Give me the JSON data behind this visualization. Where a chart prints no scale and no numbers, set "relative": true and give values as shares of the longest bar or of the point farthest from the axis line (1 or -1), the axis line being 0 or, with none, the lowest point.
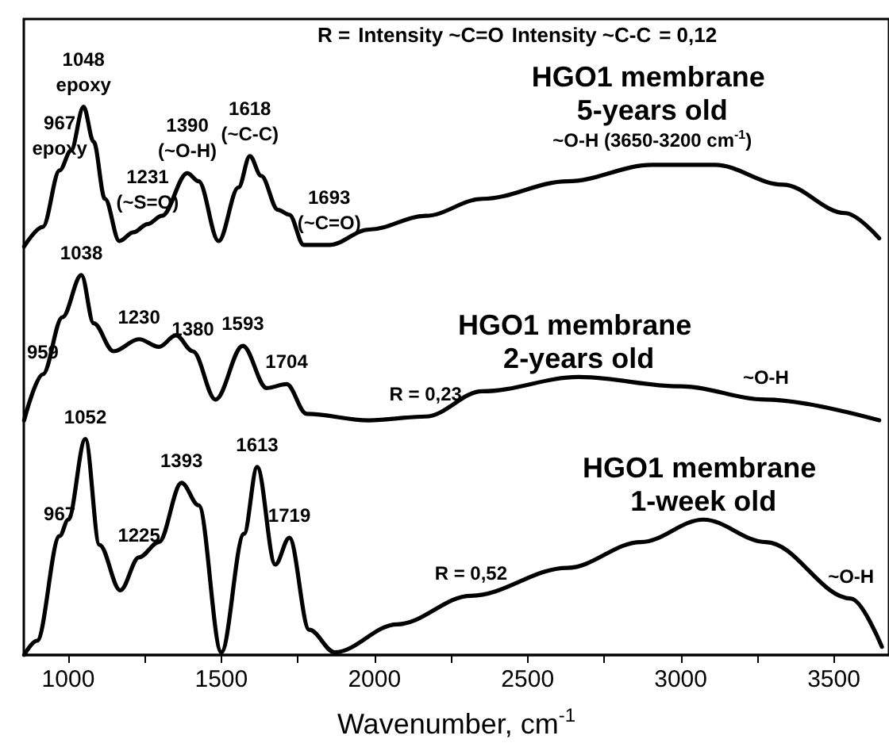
{
  "chart_data": {
    "type": "line",
    "relative": true,
    "xlabel": "Wavenumber, cm$^{-1}$",
    "xlim": [
      855,
      3680
    ],
    "xticks": [
      1000,
      1500,
      2000,
      2500,
      3000,
      3500
    ],
    "grid": false,
    "tick_labels": "x",
    "marker": "none",
    "line_style": "solid",
    "series": [
      {
        "name": "HGO1 membrane 5-years old",
        "color": "#000000",
        "x": [
          856,
          917,
          972,
          1009,
          1050,
          1083,
          1120,
          1167,
          1213,
          1259,
          1306,
          1389,
          1426,
          1491,
          1556,
          1593,
          1630,
          1685,
          1722,
          1769,
          1852,
          1982,
          2167,
          2352,
          2630,
          2907,
          3111,
          3333,
          3537,
          3648
        ],
        "values": [
          0.745,
          0.781,
          0.884,
          0.92,
          1.0,
          0.936,
          0.832,
          0.755,
          0.771,
          0.786,
          0.801,
          0.879,
          0.864,
          0.755,
          0.853,
          0.91,
          0.874,
          0.812,
          0.803,
          0.748,
          0.748,
          0.776,
          0.801,
          0.832,
          0.864,
          0.894,
          0.894,
          0.858,
          0.806,
          0.76
        ]
      },
      {
        "name": "HGO1 membrane 2-years old",
        "color": "#000000",
        "x": [
          856,
          917,
          981,
          1043,
          1083,
          1148,
          1231,
          1296,
          1352,
          1407,
          1481,
          1570,
          1648,
          1713,
          1778,
          1981,
          2167,
          2352,
          2667,
          3000,
          3278,
          3648
        ],
        "values": [
          0.428,
          0.512,
          0.616,
          0.693,
          0.605,
          0.554,
          0.576,
          0.562,
          0.583,
          0.554,
          0.466,
          0.564,
          0.487,
          0.494,
          0.44,
          0.428,
          0.435,
          0.481,
          0.507,
          0.49,
          0.466,
          0.428
        ]
      },
      {
        "name": "HGO1 membrane 1-week old",
        "color": "#000000",
        "x": [
          856,
          898,
          972,
          1000,
          1056,
          1102,
          1170,
          1231,
          1296,
          1370,
          1426,
          1500,
          1574,
          1617,
          1676,
          1722,
          1787,
          1870,
          2074,
          2315,
          2630,
          2870,
          3074,
          3278,
          3556,
          3657
        ],
        "values": [
          0.0,
          0.026,
          0.217,
          0.247,
          0.394,
          0.201,
          0.118,
          0.178,
          0.206,
          0.314,
          0.273,
          0.005,
          0.221,
          0.343,
          0.165,
          0.214,
          0.046,
          0.005,
          0.056,
          0.108,
          0.159,
          0.206,
          0.247,
          0.206,
          0.103,
          0.015
        ]
      }
    ],
    "annotations": [
      "R =",
      "Intensity ~C=O",
      "Intensity ~C-C",
      "= 0,12",
      {
        "text": "967",
        "x": 972,
        "y": 0.884
      },
      {
        "text": "epoxy",
        "x": 972,
        "y": 0.884
      },
      {
        "text": "1048",
        "x": 1050,
        "y": 1.0
      },
      {
        "text": "epoxy",
        "x": 1050,
        "y": 1.0
      },
      {
        "text": "1231",
        "x": 1259,
        "y": 0.786
      },
      {
        "text": "(~S=O)",
        "x": 1259,
        "y": 0.786
      },
      {
        "text": "1390",
        "x": 1389,
        "y": 0.879
      },
      {
        "text": "(~O-H)",
        "x": 1389,
        "y": 0.879
      },
      {
        "text": "1618",
        "x": 1593,
        "y": 0.91
      },
      {
        "text": "(~C-C)",
        "x": 1593,
        "y": 0.91
      },
      {
        "text": "1693",
        "x": 1852,
        "y": 0.748
      },
      {
        "text": "(~C=O)",
        "x": 1852,
        "y": 0.748
      },
      {
        "text": "~O-H (3650-3200 cm$^{-1}$)",
        "x": 2907,
        "y": 0.894
      },
      {
        "text": "959",
        "x": 917,
        "y": 0.512
      },
      {
        "text": "1038",
        "x": 1043,
        "y": 0.693
      },
      {
        "text": "1230",
        "x": 1231,
        "y": 0.576
      },
      {
        "text": "1380",
        "x": 1407,
        "y": 0.554
      },
      {
        "text": "1593",
        "x": 1570,
        "y": 0.564
      },
      {
        "text": "1704",
        "x": 1713,
        "y": 0.494
      },
      {
        "text": "R = 0,23",
        "x": 2167,
        "y": 0.435
      },
      {
        "text": "~O-H",
        "x": 3278,
        "y": 0.466
      },
      {
        "text": "967",
        "x": 972,
        "y": 0.217
      },
      {
        "text": "1052",
        "x": 1056,
        "y": 0.394
      },
      {
        "text": "1225",
        "x": 1231,
        "y": 0.178
      },
      {
        "text": "1393",
        "x": 1370,
        "y": 0.314
      },
      {
        "text": "1613",
        "x": 1617,
        "y": 0.343
      },
      {
        "text": "1719",
        "x": 1722,
        "y": 0.214
      },
      {
        "text": "R = 0,52",
        "x": 2315,
        "y": 0.108
      },
      {
        "text": "~O-H",
        "x": 3556,
        "y": 0.103
      }
    ]
  }
}
